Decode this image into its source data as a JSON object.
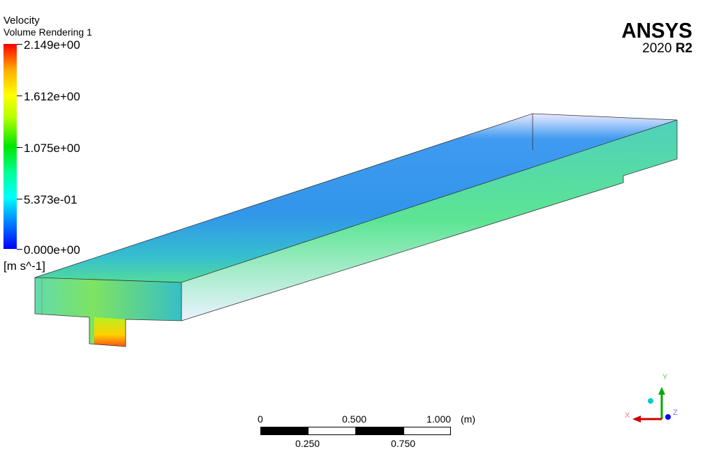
{
  "legend": {
    "variable": "Velocity",
    "object": "Volume Rendering 1",
    "ticks": [
      "2.149e+00",
      "1.612e+00",
      "1.075e+00",
      "5.373e-01",
      "0.000e+00"
    ],
    "units": "[m s^-1]",
    "min": 0.0,
    "max": 2.149,
    "colormap": [
      "#0000ff",
      "#00ffff",
      "#00ff00",
      "#ffff00",
      "#ff0000"
    ]
  },
  "logo": {
    "name": "ANSYS",
    "version": "2020",
    "release": "R2"
  },
  "scale_bar": {
    "top_labels": [
      "0",
      "0.500",
      "1.000"
    ],
    "bottom_labels": [
      "0.250",
      "0.750"
    ],
    "unit": "(m)"
  },
  "axis_triad": {
    "x": {
      "label": "X",
      "color": "#cc0000"
    },
    "y": {
      "label": "Y",
      "color": "#00aa00"
    },
    "z": {
      "label": "Z",
      "color": "#0000ff"
    }
  }
}
